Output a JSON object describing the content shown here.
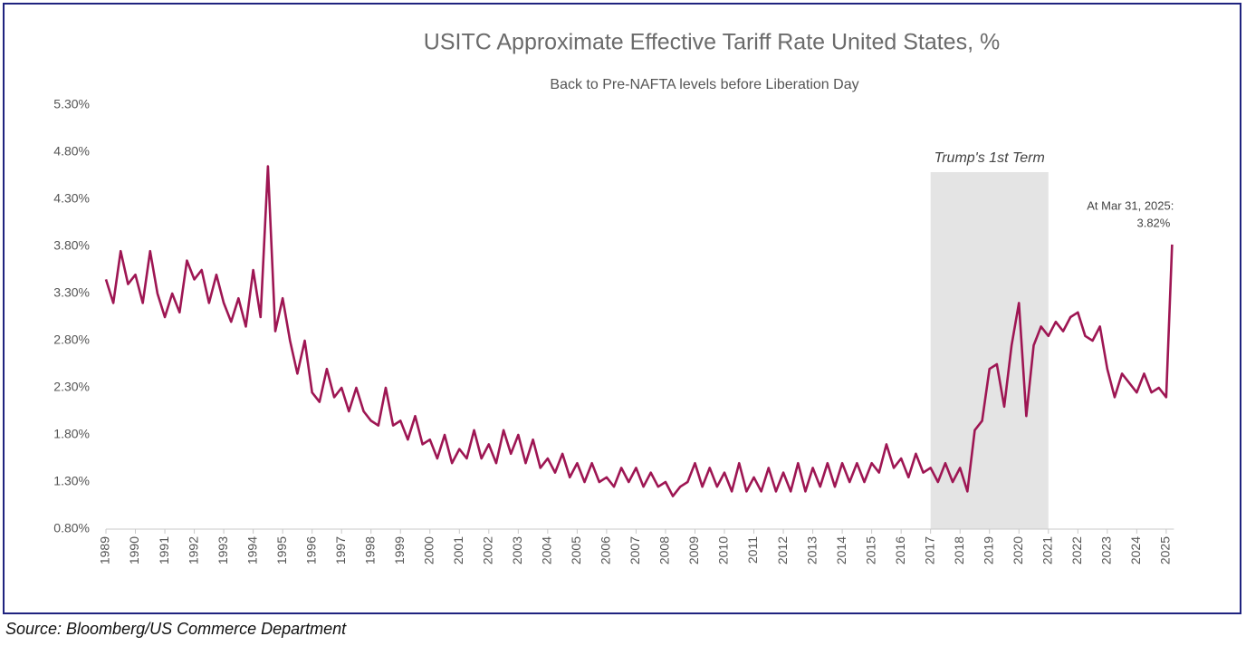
{
  "chart_data": {
    "type": "line",
    "title": "USITC Approximate Effective Tariff Rate United States, %",
    "subtitle": "Back to Pre-NAFTA levels before Liberation Day",
    "source": "Source: Bloomberg/US Commerce Department",
    "color": "#9e1653",
    "shade": {
      "from": 2017,
      "to": 2021,
      "label": "Trump's 1st Term"
    },
    "annotation": "At Mar 31, 2025:",
    "xlim": [
      1989,
      2025.25
    ],
    "xticks": [
      1989,
      1990,
      1991,
      1992,
      1993,
      1994,
      1995,
      1996,
      1997,
      1998,
      1999,
      2000,
      2001,
      2002,
      2003,
      2004,
      2005,
      2006,
      2007,
      2008,
      2009,
      2010,
      2011,
      2012,
      2013,
      2014,
      2015,
      2016,
      2017,
      2018,
      2019,
      2020,
      2021,
      2022,
      2023,
      2024,
      2025
    ],
    "ylim": [
      0.8,
      5.3
    ],
    "yticks": [
      {
        "value": 0.8,
        "label": "0.80%"
      },
      {
        "value": 1.3,
        "label": "1.30%"
      },
      {
        "value": 1.8,
        "label": "1.80%"
      },
      {
        "value": 2.3,
        "label": "2.30%"
      },
      {
        "value": 2.8,
        "label": "2.80%"
      },
      {
        "value": 3.3,
        "label": "3.30%"
      },
      {
        "value": 3.8,
        "label": "3.80%"
      },
      {
        "value": 4.3,
        "label": "4.30%"
      },
      {
        "value": 4.8,
        "label": "4.80%"
      },
      {
        "value": 5.3,
        "label": "5.30%"
      }
    ],
    "x": [
      1989,
      1989.25,
      1989.5,
      1989.75,
      1990,
      1990.25,
      1990.5,
      1990.75,
      1991,
      1991.25,
      1991.5,
      1991.75,
      1992,
      1992.25,
      1992.5,
      1992.75,
      1993,
      1993.25,
      1993.5,
      1993.75,
      1994,
      1994.25,
      1994.5,
      1994.75,
      1995,
      1995.25,
      1995.5,
      1995.75,
      1996,
      1996.25,
      1996.5,
      1996.75,
      1997,
      1997.25,
      1997.5,
      1997.75,
      1998,
      1998.25,
      1998.5,
      1998.75,
      1999,
      1999.25,
      1999.5,
      1999.75,
      2000,
      2000.25,
      2000.5,
      2000.75,
      2001,
      2001.25,
      2001.5,
      2001.75,
      2002,
      2002.25,
      2002.5,
      2002.75,
      2003,
      2003.25,
      2003.5,
      2003.75,
      2004,
      2004.25,
      2004.5,
      2004.75,
      2005,
      2005.25,
      2005.5,
      2005.75,
      2006,
      2006.25,
      2006.5,
      2006.75,
      2007,
      2007.25,
      2007.5,
      2007.75,
      2008,
      2008.25,
      2008.5,
      2008.75,
      2009,
      2009.25,
      2009.5,
      2009.75,
      2010,
      2010.25,
      2010.5,
      2010.75,
      2011,
      2011.25,
      2011.5,
      2011.75,
      2012,
      2012.25,
      2012.5,
      2012.75,
      2013,
      2013.25,
      2013.5,
      2013.75,
      2014,
      2014.25,
      2014.5,
      2014.75,
      2015,
      2015.25,
      2015.5,
      2015.75,
      2016,
      2016.25,
      2016.5,
      2016.75,
      2017,
      2017.25,
      2017.5,
      2017.75,
      2018,
      2018.25,
      2018.5,
      2018.75,
      2019,
      2019.25,
      2019.5,
      2019.75,
      2020,
      2020.25,
      2020.5,
      2020.75,
      2021,
      2021.25,
      2021.5,
      2021.75,
      2022,
      2022.25,
      2022.5,
      2022.75,
      2023,
      2023.25,
      2023.5,
      2023.75,
      2024,
      2024.25,
      2024.5,
      2024.75,
      2025,
      2025.2
    ],
    "values": [
      3.45,
      3.2,
      3.75,
      3.4,
      3.5,
      3.2,
      3.75,
      3.3,
      3.05,
      3.3,
      3.1,
      3.65,
      3.45,
      3.55,
      3.2,
      3.5,
      3.2,
      3.0,
      3.25,
      2.95,
      3.55,
      3.05,
      4.65,
      2.9,
      3.25,
      2.8,
      2.45,
      2.8,
      2.25,
      2.15,
      2.5,
      2.2,
      2.3,
      2.05,
      2.3,
      2.05,
      1.95,
      1.9,
      2.3,
      1.9,
      1.95,
      1.75,
      2.0,
      1.7,
      1.75,
      1.55,
      1.8,
      1.5,
      1.65,
      1.55,
      1.85,
      1.55,
      1.7,
      1.5,
      1.85,
      1.6,
      1.8,
      1.5,
      1.75,
      1.45,
      1.55,
      1.4,
      1.6,
      1.35,
      1.5,
      1.3,
      1.5,
      1.3,
      1.35,
      1.25,
      1.45,
      1.3,
      1.45,
      1.25,
      1.4,
      1.25,
      1.3,
      1.15,
      1.25,
      1.3,
      1.5,
      1.25,
      1.45,
      1.25,
      1.4,
      1.2,
      1.5,
      1.2,
      1.35,
      1.2,
      1.45,
      1.2,
      1.4,
      1.2,
      1.5,
      1.2,
      1.45,
      1.25,
      1.5,
      1.25,
      1.5,
      1.3,
      1.5,
      1.3,
      1.5,
      1.4,
      1.7,
      1.45,
      1.55,
      1.35,
      1.6,
      1.4,
      1.45,
      1.3,
      1.5,
      1.3,
      1.45,
      1.2,
      1.85,
      1.95,
      2.5,
      2.55,
      2.1,
      2.75,
      3.2,
      2.0,
      2.75,
      2.95,
      2.85,
      3.0,
      2.9,
      3.05,
      3.1,
      2.85,
      2.8,
      2.95,
      2.5,
      2.2,
      2.45,
      2.35,
      2.25,
      2.45,
      2.25,
      2.3,
      2.2,
      3.82
    ],
    "value_labels": [
      null,
      null,
      null,
      null,
      null,
      null,
      null,
      null,
      null,
      null,
      null,
      null,
      null,
      null,
      null,
      null,
      null,
      null,
      null,
      null,
      null,
      null,
      null,
      null,
      null,
      null,
      null,
      null,
      null,
      null,
      null,
      null,
      null,
      null,
      null,
      null,
      null,
      null,
      null,
      null,
      null,
      null,
      null,
      null,
      null,
      null,
      null,
      null,
      null,
      null,
      null,
      null,
      null,
      null,
      null,
      null,
      null,
      null,
      null,
      null,
      null,
      null,
      null,
      null,
      null,
      null,
      null,
      null,
      null,
      null,
      null,
      null,
      null,
      null,
      null,
      null,
      null,
      null,
      null,
      null,
      null,
      null,
      null,
      null,
      null,
      null,
      null,
      null,
      null,
      null,
      null,
      null,
      null,
      null,
      null,
      null,
      null,
      null,
      null,
      null,
      null,
      null,
      null,
      null,
      null,
      null,
      null,
      null,
      null,
      null,
      null,
      null,
      null,
      null,
      null,
      null,
      null,
      null,
      null,
      null,
      null,
      null,
      null,
      null,
      null,
      null,
      null,
      null,
      null,
      null,
      null,
      null,
      null,
      null,
      null,
      null,
      null,
      null,
      null,
      null,
      null,
      null,
      null,
      null,
      null,
      "3.82%"
    ]
  }
}
